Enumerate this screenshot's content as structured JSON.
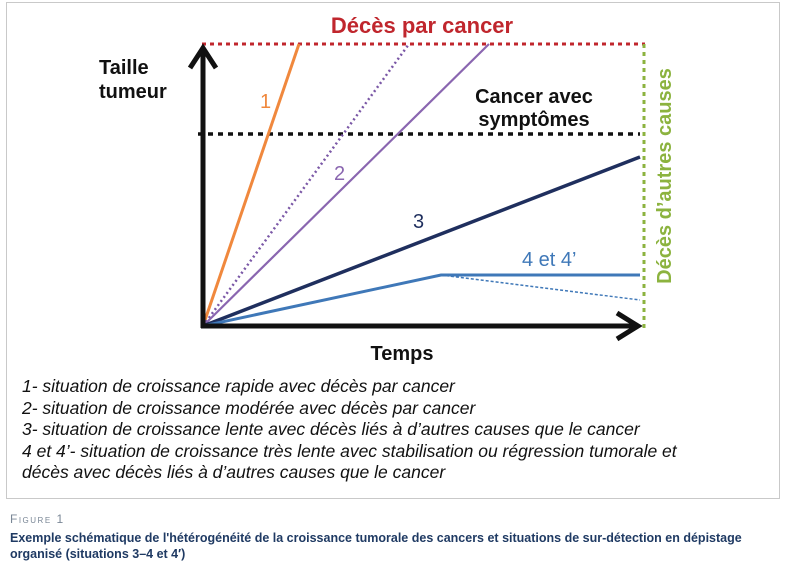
{
  "diagram": {
    "labels": {
      "deaths_cancer": "Décès par cancer",
      "deaths_other": "Décès d’autres causes",
      "y_axis_line1": "Taille",
      "y_axis_line2": "tumeur",
      "x_axis": "Temps",
      "symptoms_line1": "Cancer avec",
      "symptoms_line2": "symptômes",
      "curve1": "1",
      "curve2": "2",
      "curve3": "3",
      "curve4": "4 et 4’"
    },
    "colors": {
      "deaths_cancer": "#c0262d",
      "deaths_other": "#8cb33f",
      "axis": "#111111",
      "symptoms_line": "#111111",
      "curve1": "#f0883d",
      "curve2": "#8a66b0",
      "curve3": "#1f2f5e",
      "curve4": "#3f78b8"
    }
  },
  "legend": [
    "1- situation de croissance rapide avec décès par cancer",
    "2- situation de croissance modérée avec décès par cancer",
    "3- situation de croissance lente avec décès liés à d’autres causes que le cancer",
    "4 et 4’- situation de croissance très lente avec stabilisation ou  régression tumorale et",
    "décès avec décès liés à d’autres causes que le cancer"
  ],
  "caption": {
    "label": "Figure 1",
    "text": "Exemple schématique de l'hétérogénéité de la croissance tumorale des cancers et situations de sur-détection en dépistage organisé (situations 3–4 et 4′)"
  }
}
